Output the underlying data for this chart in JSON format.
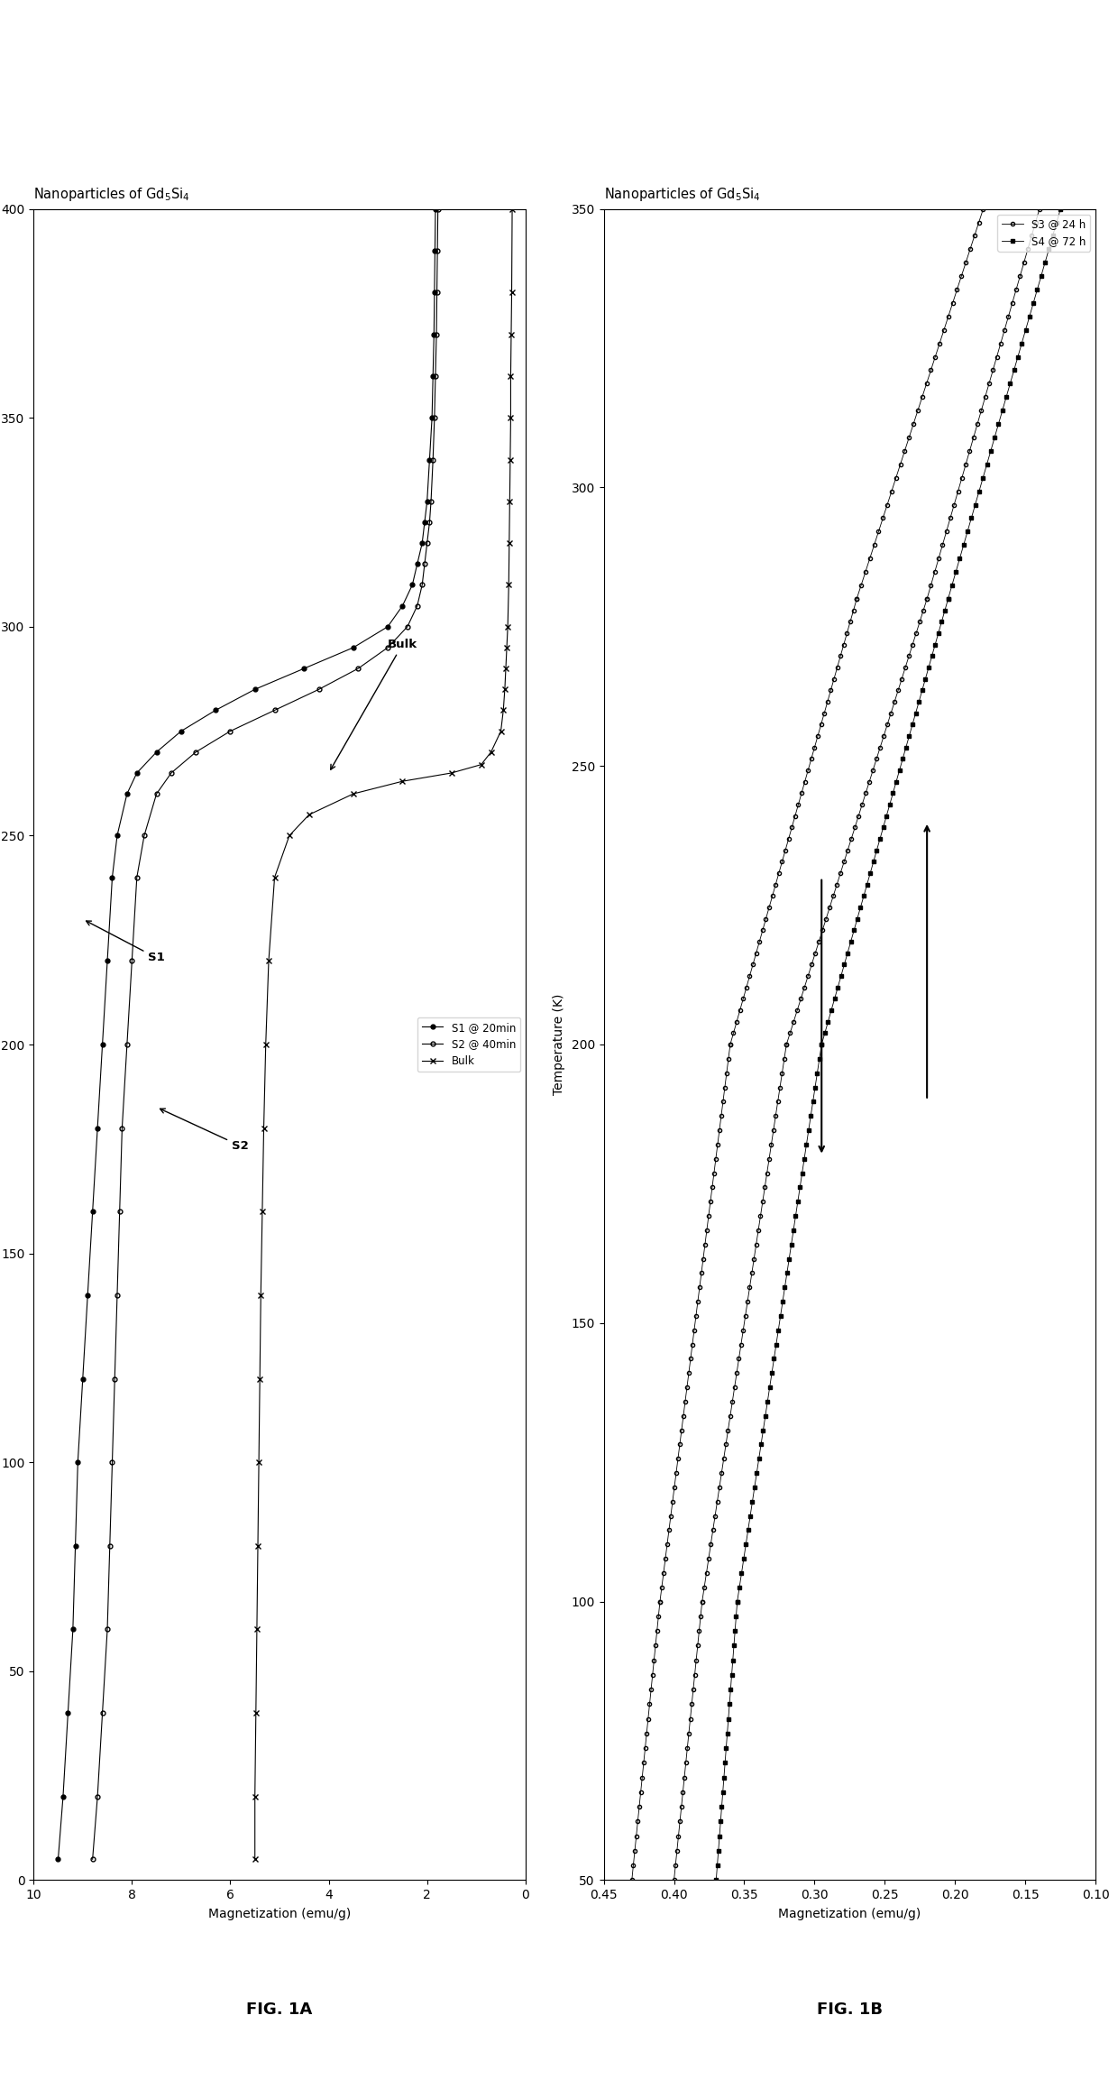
{
  "fig1A": {
    "title": "Nanoparticles of Gd$_5$Si$_4$",
    "xlabel": "Temperature (K)",
    "ylabel": "Magnetization (emu/g)",
    "xlim": [
      0,
      400
    ],
    "ylim": [
      0,
      10
    ],
    "yticks": [
      0,
      2,
      4,
      6,
      8,
      10
    ],
    "xticks": [
      0,
      50,
      100,
      150,
      200,
      250,
      300,
      350,
      400
    ],
    "legend": [
      "S1 @ 20min",
      "S2 @ 40min",
      "Bulk"
    ],
    "figcaption": "FIG. 1A"
  },
  "fig1B": {
    "title": "Nanoparticles of Gd$_5$Si$_4$",
    "xlabel": "Temperature (K)",
    "ylabel": "Magnetization (emu/g)",
    "xlim": [
      50,
      350
    ],
    "ylim": [
      0.1,
      0.45
    ],
    "yticks": [
      0.1,
      0.15,
      0.2,
      0.25,
      0.3,
      0.35,
      0.4,
      0.45
    ],
    "xticks": [
      50,
      100,
      150,
      200,
      250,
      300,
      350
    ],
    "legend": [
      "S3 @ 24 h",
      "S4 @ 72 h"
    ],
    "figcaption": "FIG. 1B"
  },
  "background_color": "#ffffff",
  "line_color": "#000000"
}
